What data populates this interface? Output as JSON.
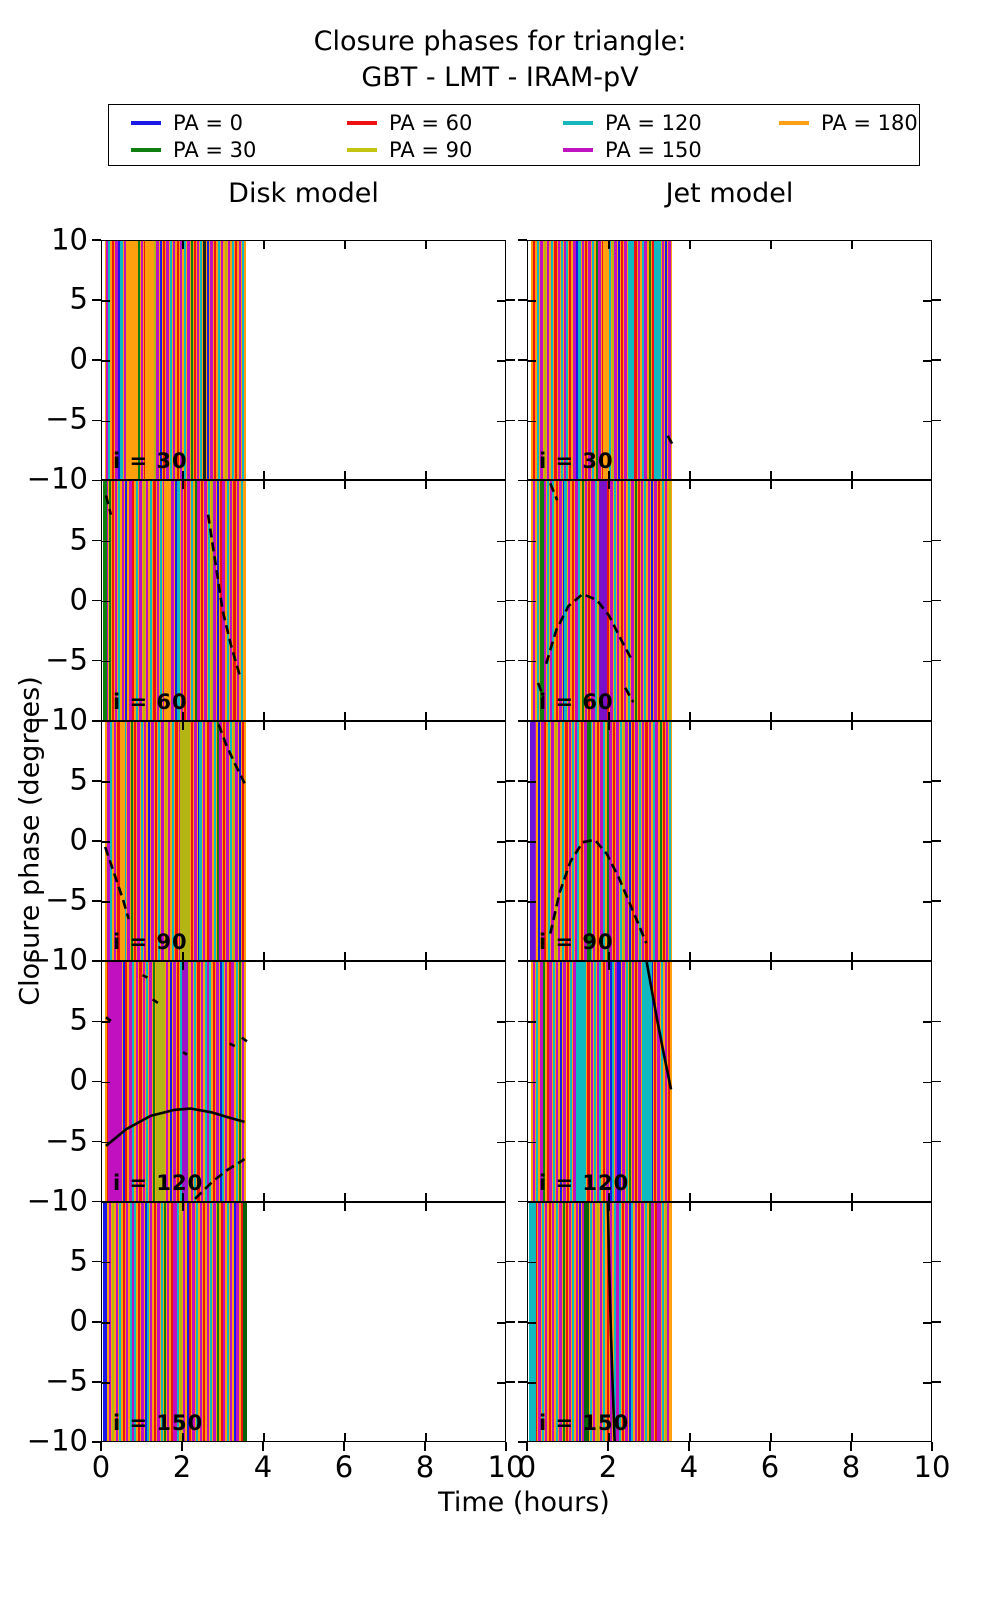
{
  "figure_title": {
    "line1": "Closure phases for triangle:",
    "line2": "GBT - LMT - IRAM-pV"
  },
  "column_titles": [
    "Disk model",
    "Jet model"
  ],
  "axis": {
    "xlabel": "Time (hours)",
    "ylabel": "Closure phase (degrees)",
    "x_tick_labels": [
      "0",
      "2",
      "4",
      "6",
      "8",
      "10"
    ],
    "y_tick_top": "10",
    "y_tick_inner": [
      "5",
      "0",
      "−5"
    ],
    "y_tick_bottom": "−10"
  },
  "legend": {
    "entries": [
      {
        "label": "PA = 0",
        "color": "#1a1ae6"
      },
      {
        "label": "PA = 30",
        "color": "#0e7f0e"
      },
      {
        "label": "PA = 60",
        "color": "#ee1111"
      },
      {
        "label": "PA = 90",
        "color": "#c4c414"
      },
      {
        "label": "PA = 120",
        "color": "#14b8bc"
      },
      {
        "label": "PA = 150",
        "color": "#c014c0"
      },
      {
        "label": "PA = 180",
        "color": "#ffa014"
      }
    ]
  },
  "chart_data": {
    "type": "line",
    "title": "Closure phases for triangle: GBT - LMT - IRAM-pV",
    "xlabel": "Time (hours)",
    "ylabel": "Closure phase (degrees)",
    "xlim": [
      0,
      10
    ],
    "ylim": [
      -10,
      10
    ],
    "x_ticks": [
      0,
      2,
      4,
      6,
      8,
      10
    ],
    "y_ticks": [
      -10,
      -5,
      0,
      5,
      10
    ],
    "pa_degrees": [
      0,
      30,
      60,
      90,
      120,
      150,
      180
    ],
    "inclination_rows": [
      30,
      60,
      90,
      120,
      150
    ],
    "model_columns": [
      "Disk model",
      "Jet model"
    ],
    "sampling_band_hours": [
      0.08,
      3.56
    ],
    "stripe_background": "#ff9f0e",
    "stripe_palette": [
      "#1a1ae6",
      "#0e7f0e",
      "#ee1111",
      "#b4b414",
      "#10b8c0",
      "#c010c0",
      "#ff9f0e"
    ],
    "stripe_template": [
      [
        0.005,
        2.5,
        5
      ],
      [
        0.02,
        2,
        4
      ],
      [
        0.045,
        2,
        2
      ],
      [
        0.07,
        3,
        5
      ],
      [
        0.095,
        2,
        0
      ],
      [
        0.11,
        2.5,
        4
      ],
      [
        0.135,
        2,
        5
      ],
      [
        0.16,
        2,
        2
      ],
      [
        0.185,
        3,
        5
      ],
      [
        0.21,
        2,
        4
      ],
      [
        0.235,
        2,
        1
      ],
      [
        0.255,
        2.5,
        5
      ],
      [
        0.28,
        2,
        2
      ],
      [
        0.305,
        3.5,
        5
      ],
      [
        0.33,
        2,
        4
      ],
      [
        0.35,
        2,
        3
      ],
      [
        0.37,
        2.5,
        5
      ],
      [
        0.395,
        2,
        0
      ],
      [
        0.415,
        2,
        2
      ],
      [
        0.44,
        3,
        5
      ],
      [
        0.465,
        2,
        4
      ],
      [
        0.49,
        2,
        5
      ],
      [
        0.515,
        2.5,
        2
      ],
      [
        0.54,
        2,
        5
      ],
      [
        0.565,
        2,
        4
      ],
      [
        0.59,
        3,
        5
      ],
      [
        0.615,
        2,
        1
      ],
      [
        0.64,
        2,
        2
      ],
      [
        0.66,
        2.5,
        5
      ],
      [
        0.685,
        2,
        4
      ],
      [
        0.71,
        2,
        5
      ],
      [
        0.735,
        2,
        0
      ],
      [
        0.76,
        3,
        5
      ],
      [
        0.785,
        2,
        2
      ],
      [
        0.81,
        2,
        4
      ],
      [
        0.835,
        2.5,
        5
      ],
      [
        0.86,
        2,
        3
      ],
      [
        0.885,
        2,
        5
      ],
      [
        0.91,
        2,
        4
      ],
      [
        0.935,
        2.5,
        2
      ],
      [
        0.96,
        2,
        5
      ],
      [
        0.985,
        2,
        4
      ]
    ],
    "panels": [
      {
        "model": "Disk",
        "inclination": 30,
        "label": "i = 30",
        "stripe_shift": 0.0,
        "extra_stripes": [
          [
            2.53,
            3,
            "#202020"
          ],
          [
            0.75,
            10,
            "#ff9f0e"
          ],
          [
            1.15,
            8,
            "#ff9f0e"
          ]
        ],
        "curves": []
      },
      {
        "model": "Jet",
        "inclination": 30,
        "label": "i = 30",
        "stripe_shift": 0.23,
        "extra_stripes": [
          [
            2.55,
            6,
            "#10b8c0"
          ],
          [
            3.2,
            7,
            "#10b8c0"
          ],
          [
            1.9,
            5,
            "#ff9f0e"
          ]
        ],
        "curves": [
          {
            "style": "dashed",
            "points": [
              [
                3.45,
                -6.2
              ],
              [
                3.58,
                -7.0
              ]
            ]
          }
        ]
      },
      {
        "model": "Disk",
        "inclination": 60,
        "label": "i = 60",
        "stripe_shift": 0.41,
        "extra_stripes": [
          [
            0.07,
            4,
            "#0e7f0e"
          ],
          [
            1.6,
            6,
            "#ff9f0e"
          ]
        ],
        "curves": [
          {
            "style": "dashed",
            "points": [
              [
                2.62,
                7.2
              ],
              [
                2.8,
                3.2
              ],
              [
                2.98,
                -0.8
              ],
              [
                3.18,
                -3.6
              ],
              [
                3.42,
                -6.4
              ]
            ]
          },
          {
            "style": "dashed",
            "points": [
              [
                0.1,
                8.8
              ],
              [
                0.22,
                7.2
              ]
            ]
          }
        ]
      },
      {
        "model": "Jet",
        "inclination": 60,
        "label": "i = 60",
        "stripe_shift": 0.13,
        "extra_stripes": [
          [
            1.85,
            8,
            "#7a10c8"
          ],
          [
            0.35,
            4,
            "#0e7f0e"
          ]
        ],
        "curves": [
          {
            "style": "dashed",
            "points": [
              [
                0.45,
                -5.2
              ],
              [
                0.7,
                -2.4
              ],
              [
                1.0,
                -0.4
              ],
              [
                1.35,
                0.6
              ],
              [
                1.7,
                0.1
              ],
              [
                2.0,
                -1.2
              ],
              [
                2.3,
                -3.2
              ],
              [
                2.55,
                -4.8
              ]
            ]
          },
          {
            "style": "dashed",
            "points": [
              [
                0.55,
                9.8
              ],
              [
                0.72,
                8.4
              ]
            ]
          },
          {
            "style": "dashed",
            "points": [
              [
                2.4,
                -7.2
              ],
              [
                2.6,
                -8.4
              ]
            ]
          },
          {
            "style": "dashed",
            "points": [
              [
                0.25,
                -6.8
              ],
              [
                0.38,
                -8.0
              ]
            ]
          }
        ]
      },
      {
        "model": "Disk",
        "inclination": 90,
        "label": "i = 90",
        "stripe_shift": 0.57,
        "extra_stripes": [
          [
            2.06,
            10,
            "#b4b414"
          ],
          [
            0.5,
            5,
            "#ff9f0e"
          ]
        ],
        "curves": [
          {
            "style": "dashed",
            "points": [
              [
                2.88,
                9.8
              ],
              [
                3.08,
                8.0
              ],
              [
                3.3,
                6.4
              ],
              [
                3.52,
                4.9
              ]
            ]
          },
          {
            "style": "dashed",
            "points": [
              [
                0.08,
                -0.4
              ],
              [
                0.3,
                -2.6
              ],
              [
                0.52,
                -4.8
              ],
              [
                0.66,
                -6.4
              ]
            ]
          }
        ]
      },
      {
        "model": "Jet",
        "inclination": 90,
        "label": "i = 90",
        "stripe_shift": 0.31,
        "extra_stripes": [
          [
            0.12,
            5,
            "#6a14dc"
          ],
          [
            1.5,
            4,
            "#0e7f0e"
          ]
        ],
        "curves": [
          {
            "style": "dashed",
            "points": [
              [
                0.55,
                -7.6
              ],
              [
                0.78,
                -4.2
              ],
              [
                1.05,
                -1.6
              ],
              [
                1.35,
                0.0
              ],
              [
                1.65,
                0.2
              ],
              [
                1.95,
                -1.0
              ],
              [
                2.25,
                -3.0
              ],
              [
                2.5,
                -5.0
              ],
              [
                2.7,
                -6.6
              ],
              [
                2.92,
                -8.4
              ]
            ]
          }
        ]
      },
      {
        "model": "Disk",
        "inclination": 120,
        "label": "i = 120",
        "stripe_shift": 0.73,
        "extra_stripes": [
          [
            0.3,
            12,
            "#c010c0"
          ],
          [
            1.45,
            9,
            "#b4b414"
          ],
          [
            2.05,
            6,
            "#a014c8"
          ]
        ],
        "curves": [
          {
            "style": "solid",
            "points": [
              [
                0.1,
                -5.3
              ],
              [
                0.6,
                -3.9
              ],
              [
                1.2,
                -2.8
              ],
              [
                1.8,
                -2.3
              ],
              [
                2.2,
                -2.2
              ],
              [
                2.7,
                -2.5
              ],
              [
                3.1,
                -2.9
              ],
              [
                3.52,
                -3.3
              ]
            ]
          },
          {
            "style": "dashed",
            "points": [
              [
                2.3,
                -9.7
              ],
              [
                2.75,
                -8.2
              ],
              [
                3.1,
                -7.3
              ],
              [
                3.52,
                -6.4
              ]
            ]
          },
          {
            "style": "dashed",
            "points": [
              [
                0.1,
                5.4
              ],
              [
                0.22,
                5.1
              ]
            ]
          },
          {
            "style": "dashed",
            "points": [
              [
                1.25,
                6.9
              ],
              [
                1.38,
                6.6
              ]
            ]
          },
          {
            "style": "dashed",
            "points": [
              [
                2.0,
                2.5
              ],
              [
                2.1,
                2.3
              ]
            ]
          },
          {
            "style": "dashed",
            "points": [
              [
                3.15,
                3.2
              ],
              [
                3.28,
                3.0
              ]
            ]
          },
          {
            "style": "dashed",
            "points": [
              [
                3.45,
                3.7
              ],
              [
                3.58,
                3.4
              ]
            ]
          },
          {
            "style": "dashed",
            "points": [
              [
                1.0,
                8.9
              ],
              [
                1.12,
                8.7
              ]
            ]
          }
        ]
      },
      {
        "model": "Jet",
        "inclination": 120,
        "label": "i = 120",
        "stripe_shift": 0.47,
        "extra_stripes": [
          [
            1.3,
            9,
            "#10b8c0"
          ],
          [
            2.95,
            9,
            "#10b8c0"
          ],
          [
            2.25,
            4,
            "#1a1ae6"
          ]
        ],
        "curves": [
          {
            "style": "solid",
            "points": [
              [
                2.93,
                10.0
              ],
              [
                3.06,
                7.6
              ],
              [
                3.2,
                5.0
              ],
              [
                3.35,
                2.4
              ],
              [
                3.46,
                0.6
              ],
              [
                3.53,
                -0.6
              ]
            ]
          }
        ]
      },
      {
        "model": "Disk",
        "inclination": 150,
        "label": "i = 150",
        "stripe_shift": 0.19,
        "extra_stripes": [
          [
            0.07,
            4,
            "#1a1ae6"
          ],
          [
            3.52,
            4,
            "#0a640a"
          ]
        ],
        "curves": []
      },
      {
        "model": "Jet",
        "inclination": 150,
        "label": "i = 150",
        "stripe_shift": 0.61,
        "extra_stripes": [
          [
            0.1,
            7,
            "#10b8c0"
          ],
          [
            1.45,
            5,
            "#0a640a"
          ]
        ],
        "curves": [
          {
            "style": "solid",
            "points": [
              [
                1.97,
                10.0
              ],
              [
                2.01,
                4.0
              ],
              [
                2.05,
                -1.0
              ],
              [
                2.1,
                -6.0
              ],
              [
                2.14,
                -10.0
              ]
            ]
          }
        ]
      }
    ]
  }
}
